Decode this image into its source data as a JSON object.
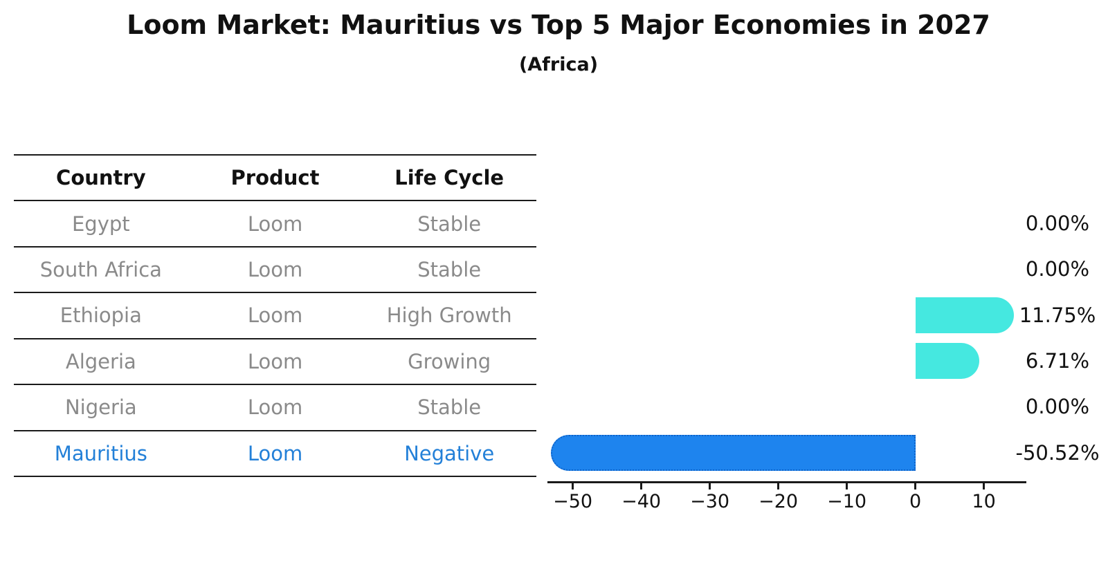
{
  "header": {
    "title": "Loom Market: Mauritius vs Top 5 Major Economies in 2027",
    "subtitle": "(Africa)"
  },
  "table": {
    "headers": [
      "Country",
      "Product",
      "Life Cycle"
    ],
    "rows": [
      {
        "country": "Egypt",
        "product": "Loom",
        "life_cycle": "Stable",
        "highlight": false
      },
      {
        "country": "South Africa",
        "product": "Loom",
        "life_cycle": "Stable",
        "highlight": false
      },
      {
        "country": "Ethiopia",
        "product": "Loom",
        "life_cycle": "High Growth",
        "highlight": false
      },
      {
        "country": "Algeria",
        "product": "Loom",
        "life_cycle": "Growing",
        "highlight": false
      },
      {
        "country": "Nigeria",
        "product": "Loom",
        "life_cycle": "Stable",
        "highlight": false
      },
      {
        "country": "Mauritius",
        "product": "Loom",
        "life_cycle": "Negative",
        "highlight": true
      }
    ]
  },
  "chart_data": {
    "type": "bar",
    "orientation": "horizontal",
    "title": "Loom Market: Mauritius vs Top 5 Major Economies in 2027",
    "subtitle": "(Africa)",
    "categories": [
      "Egypt",
      "South Africa",
      "Ethiopia",
      "Algeria",
      "Nigeria",
      "Mauritius"
    ],
    "values": [
      0.0,
      0.0,
      11.75,
      6.71,
      0.0,
      -50.52
    ],
    "value_labels": [
      "0.00%",
      "0.00%",
      "11.75%",
      "6.71%",
      "0.00%",
      "-50.52%"
    ],
    "x_ticks": [
      -50,
      -40,
      -30,
      -20,
      -10,
      0,
      10
    ],
    "x_tick_labels": [
      "−50",
      "−40",
      "−30",
      "−20",
      "−10",
      "0",
      "10"
    ],
    "xlim": [
      -53.7,
      16.2
    ],
    "grid": false,
    "legend": "none",
    "highlight_index": 5,
    "positive_bar_color": "#45e8e0",
    "negative_bar_color": "#1e84ee",
    "negative_bar_border_color": "#0f63c8",
    "highlight_text_color": "#2380d8"
  }
}
